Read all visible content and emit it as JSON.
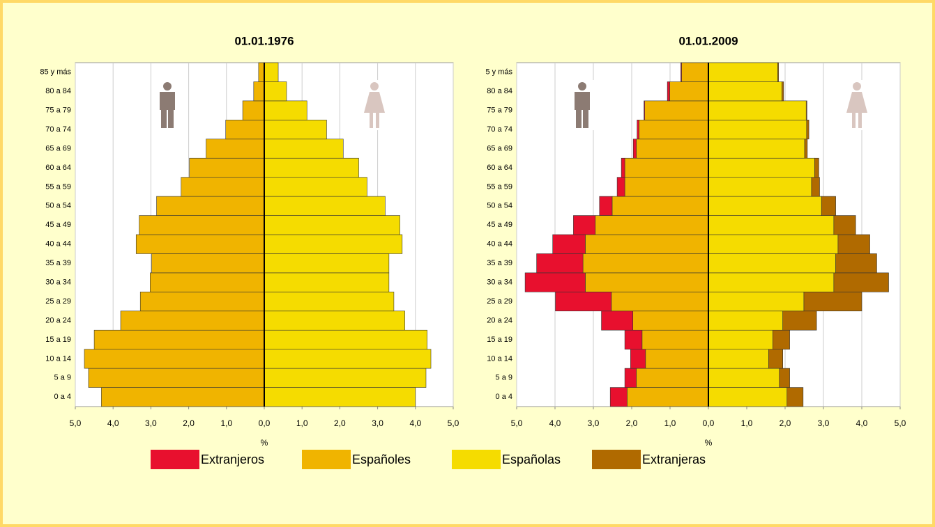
{
  "chart_data": [
    {
      "type": "pyramid",
      "title": "01.01.1976",
      "xlabel": "%",
      "categories": [
        "0 a 4",
        "5 a 9",
        "10 a 14",
        "15 a 19",
        "20 a 24",
        "25 a 29",
        "30 a 34",
        "35 a 39",
        "40 a 44",
        "45 a 49",
        "50 a 54",
        "55 a 59",
        "60 a 64",
        "65 a 69",
        "70 a 74",
        "75 a 79",
        "80 a 84",
        "85 y más"
      ],
      "series": [
        {
          "name": "Españoles",
          "color": "#f0b400",
          "side": "left",
          "values": [
            4.31,
            4.65,
            4.76,
            4.5,
            3.8,
            3.28,
            3.02,
            2.98,
            3.39,
            3.31,
            2.85,
            2.2,
            1.98,
            1.54,
            1.02,
            0.57,
            0.28,
            0.15
          ]
        },
        {
          "name": "Españolas",
          "color": "#f5dc00",
          "side": "right",
          "values": [
            4.0,
            4.28,
            4.41,
            4.31,
            3.72,
            3.43,
            3.3,
            3.3,
            3.65,
            3.59,
            3.2,
            2.72,
            2.5,
            2.09,
            1.65,
            1.13,
            0.59,
            0.37
          ]
        }
      ],
      "xlim": [
        -5,
        5
      ],
      "xticks": [
        {
          "value": -5,
          "label": "5,0"
        },
        {
          "value": -4,
          "label": "4,0"
        },
        {
          "value": -3,
          "label": "3,0"
        },
        {
          "value": -2,
          "label": "2,0"
        },
        {
          "value": -1,
          "label": "1,0"
        },
        {
          "value": 0,
          "label": "0,0"
        },
        {
          "value": 1,
          "label": "1,0"
        },
        {
          "value": 2,
          "label": "2,0"
        },
        {
          "value": 3,
          "label": "3,0"
        },
        {
          "value": 4,
          "label": "4,0"
        },
        {
          "value": 5,
          "label": "5,0"
        }
      ],
      "grid": true
    },
    {
      "type": "pyramid",
      "title": "01.01.2009",
      "xlabel": "%",
      "categories": [
        "0 a 4",
        "5 a 9",
        "10 a 14",
        "15 a 19",
        "20 a 24",
        "25 a 29",
        "30 a 34",
        "35 a 39",
        "40 a 44",
        "45 a 49",
        "50 a 54",
        "55 a 59",
        "60 a 64",
        "65 a 69",
        "70 a 74",
        "75 a 79",
        "80 a 84",
        "5 y más"
      ],
      "series": [
        {
          "name": "Extranjeros",
          "color": "#e8102e",
          "side": "left",
          "values": [
            0.44,
            0.3,
            0.39,
            0.45,
            0.82,
            1.46,
            1.57,
            1.21,
            0.85,
            0.57,
            0.33,
            0.2,
            0.09,
            0.08,
            0.05,
            0.02,
            0.06,
            0.02
          ]
        },
        {
          "name": "Españoles",
          "color": "#f0b400",
          "side": "left",
          "values": [
            2.12,
            1.88,
            1.64,
            1.73,
            1.97,
            2.53,
            3.21,
            3.27,
            3.21,
            2.95,
            2.51,
            2.18,
            2.18,
            1.88,
            1.81,
            1.66,
            1.01,
            0.7
          ]
        },
        {
          "name": "Españolas",
          "color": "#f5dc00",
          "side": "right",
          "values": [
            2.05,
            1.85,
            1.57,
            1.68,
            1.94,
            2.49,
            3.27,
            3.32,
            3.38,
            3.27,
            2.95,
            2.69,
            2.77,
            2.51,
            2.56,
            2.55,
            1.92,
            1.81
          ]
        },
        {
          "name": "Extranjeras",
          "color": "#b06a00",
          "side": "right",
          "values": [
            0.42,
            0.27,
            0.37,
            0.44,
            0.88,
            1.51,
            1.43,
            1.07,
            0.83,
            0.57,
            0.37,
            0.21,
            0.11,
            0.07,
            0.06,
            0.02,
            0.04,
            0.02
          ]
        }
      ],
      "xlim": [
        -5,
        5
      ],
      "xticks": [
        {
          "value": -5,
          "label": "5,0"
        },
        {
          "value": -4,
          "label": "4,0"
        },
        {
          "value": -3,
          "label": "3,0"
        },
        {
          "value": -2,
          "label": "2,0"
        },
        {
          "value": -1,
          "label": "1,0"
        },
        {
          "value": 0,
          "label": "0,0"
        },
        {
          "value": 1,
          "label": "1,0"
        },
        {
          "value": 2,
          "label": "2,0"
        },
        {
          "value": 3,
          "label": "3,0"
        },
        {
          "value": 4,
          "label": "4,0"
        },
        {
          "value": 5,
          "label": "5,0"
        }
      ],
      "grid": true
    }
  ]
}
